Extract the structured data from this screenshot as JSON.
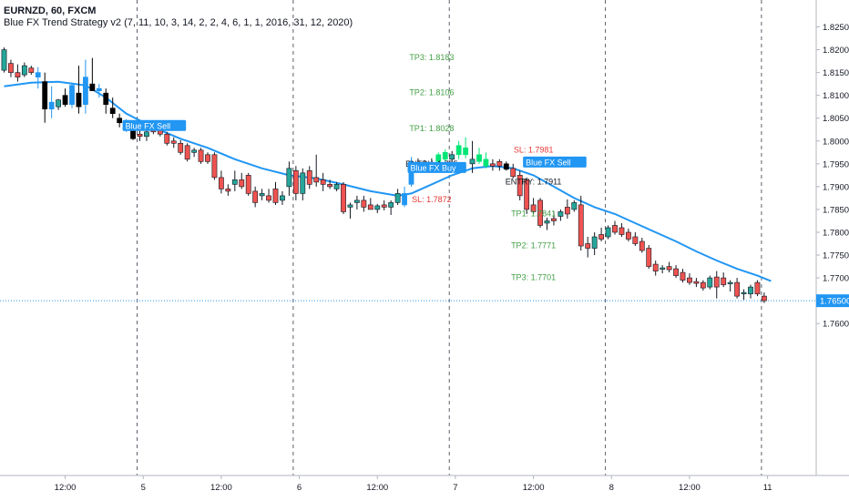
{
  "header": {
    "symbol": "EURNZD, 60, FXCM",
    "strategy": "Blue FX Trend Strategy v2 (7, 11, 10, 3, 14, 2, 2, 4, 6, 1, 1, 2016, 31, 12, 2020)"
  },
  "colors": {
    "up": "#26a69a",
    "down": "#ef5350",
    "ema": "#2196f3",
    "signal_up": "#00e676",
    "signal_down": "#000000",
    "signal_blue": "#2196f3",
    "tp": "#43a047",
    "entry": "#131722",
    "sl": "#e53935",
    "price_tag": "#2196f3"
  },
  "chart_data": {
    "type": "candlestick",
    "y_axis": {
      "range": [
        1.7575,
        1.8285
      ],
      "ticks": [
        "1.82500",
        "1.82000",
        "1.81500",
        "1.81000",
        "1.80500",
        "1.80000",
        "1.79500",
        "1.79000",
        "1.78500",
        "1.78000",
        "1.77500",
        "1.77000",
        "1.76500",
        "1.76000"
      ]
    },
    "x_axis": {
      "ticks": [
        {
          "i": 9,
          "label": "12:00"
        },
        {
          "i": 20.5,
          "label": "5"
        },
        {
          "i": 32,
          "label": "12:00"
        },
        {
          "i": 43.5,
          "label": "6"
        },
        {
          "i": 55,
          "label": "12:00"
        },
        {
          "i": 66.5,
          "label": "7"
        },
        {
          "i": 78,
          "label": "12:00"
        },
        {
          "i": 89.5,
          "label": "8"
        },
        {
          "i": 101,
          "label": "12:00"
        },
        {
          "i": 112.5,
          "label": "11"
        }
      ],
      "session_separators": [
        19.6,
        42.6,
        65.6,
        88.6,
        111.6
      ]
    },
    "last_price": {
      "value": 1.765,
      "label": "1.76500"
    },
    "candles": [
      {
        "o": 1.8155,
        "h": 1.8205,
        "l": 1.815,
        "c": 1.82,
        "s": "up"
      },
      {
        "o": 1.817,
        "h": 1.8178,
        "l": 1.814,
        "c": 1.815,
        "s": "down"
      },
      {
        "o": 1.815,
        "h": 1.8168,
        "l": 1.813,
        "c": 1.814,
        "s": "down"
      },
      {
        "o": 1.8145,
        "h": 1.8172,
        "l": 1.814,
        "c": 1.8165,
        "s": "up"
      },
      {
        "o": 1.816,
        "h": 1.8165,
        "l": 1.8145,
        "c": 1.815,
        "s": "down"
      },
      {
        "o": 1.815,
        "h": 1.8162,
        "l": 1.8115,
        "c": 1.814,
        "s": "blue"
      },
      {
        "o": 1.813,
        "h": 1.815,
        "l": 1.804,
        "c": 1.807,
        "s": "dn"
      },
      {
        "o": 1.807,
        "h": 1.812,
        "l": 1.805,
        "c": 1.8085,
        "s": "blue"
      },
      {
        "o": 1.8075,
        "h": 1.8092,
        "l": 1.8068,
        "c": 1.809,
        "s": "up"
      },
      {
        "o": 1.81,
        "h": 1.8115,
        "l": 1.8075,
        "c": 1.808,
        "s": "dn"
      },
      {
        "o": 1.808,
        "h": 1.8128,
        "l": 1.8072,
        "c": 1.8122,
        "s": "blue"
      },
      {
        "o": 1.8105,
        "h": 1.8165,
        "l": 1.806,
        "c": 1.8075,
        "s": "dn"
      },
      {
        "o": 1.808,
        "h": 1.8178,
        "l": 1.806,
        "c": 1.814,
        "s": "blue"
      },
      {
        "o": 1.8125,
        "h": 1.8182,
        "l": 1.811,
        "c": 1.811,
        "s": "dn"
      },
      {
        "o": 1.811,
        "h": 1.8125,
        "l": 1.8095,
        "c": 1.8115,
        "s": "blue"
      },
      {
        "o": 1.8105,
        "h": 1.8115,
        "l": 1.806,
        "c": 1.808,
        "s": "dn"
      },
      {
        "o": 1.8072,
        "h": 1.8095,
        "l": 1.805,
        "c": 1.806,
        "s": "dn"
      },
      {
        "o": 1.805,
        "h": 1.806,
        "l": 1.803,
        "c": 1.804,
        "s": "dn"
      },
      {
        "o": 1.804,
        "h": 1.8048,
        "l": 1.802,
        "c": 1.803,
        "s": "blue"
      },
      {
        "o": 1.803,
        "h": 1.8035,
        "l": 1.8002,
        "c": 1.8005,
        "s": "dn"
      },
      {
        "o": 1.8015,
        "h": 1.803,
        "l": 1.8,
        "c": 1.801,
        "s": "down"
      },
      {
        "o": 1.801,
        "h": 1.8025,
        "l": 1.8,
        "c": 1.802,
        "s": "up"
      },
      {
        "o": 1.8025,
        "h": 1.8032,
        "l": 1.8015,
        "c": 1.802,
        "s": "down"
      },
      {
        "o": 1.803,
        "h": 1.8035,
        "l": 1.801,
        "c": 1.8015,
        "s": "down"
      },
      {
        "o": 1.8015,
        "h": 1.802,
        "l": 1.799,
        "c": 1.7995,
        "s": "down"
      },
      {
        "o": 1.8,
        "h": 1.8008,
        "l": 1.7985,
        "c": 1.7995,
        "s": "down"
      },
      {
        "o": 1.7995,
        "h": 1.8002,
        "l": 1.797,
        "c": 1.7975,
        "s": "down"
      },
      {
        "o": 1.799,
        "h": 1.7995,
        "l": 1.7955,
        "c": 1.796,
        "s": "down"
      },
      {
        "o": 1.7975,
        "h": 1.7985,
        "l": 1.7965,
        "c": 1.798,
        "s": "up"
      },
      {
        "o": 1.798,
        "h": 1.7985,
        "l": 1.795,
        "c": 1.7955,
        "s": "down"
      },
      {
        "o": 1.797,
        "h": 1.7975,
        "l": 1.795,
        "c": 1.7955,
        "s": "down"
      },
      {
        "o": 1.797,
        "h": 1.7975,
        "l": 1.7915,
        "c": 1.792,
        "s": "down"
      },
      {
        "o": 1.792,
        "h": 1.7935,
        "l": 1.7885,
        "c": 1.7895,
        "s": "down"
      },
      {
        "o": 1.7895,
        "h": 1.7905,
        "l": 1.788,
        "c": 1.789,
        "s": "down"
      },
      {
        "o": 1.7905,
        "h": 1.7935,
        "l": 1.789,
        "c": 1.7915,
        "s": "up"
      },
      {
        "o": 1.7915,
        "h": 1.793,
        "l": 1.7895,
        "c": 1.79,
        "s": "down"
      },
      {
        "o": 1.7925,
        "h": 1.793,
        "l": 1.788,
        "c": 1.7885,
        "s": "down"
      },
      {
        "o": 1.789,
        "h": 1.79,
        "l": 1.7855,
        "c": 1.7865,
        "s": "down"
      },
      {
        "o": 1.788,
        "h": 1.7895,
        "l": 1.787,
        "c": 1.7885,
        "s": "up"
      },
      {
        "o": 1.788,
        "h": 1.7895,
        "l": 1.7865,
        "c": 1.787,
        "s": "down"
      },
      {
        "o": 1.7895,
        "h": 1.791,
        "l": 1.786,
        "c": 1.7865,
        "s": "down"
      },
      {
        "o": 1.787,
        "h": 1.789,
        "l": 1.786,
        "c": 1.788,
        "s": "up"
      },
      {
        "o": 1.79,
        "h": 1.7955,
        "l": 1.788,
        "c": 1.794,
        "s": "up"
      },
      {
        "o": 1.7935,
        "h": 1.7945,
        "l": 1.787,
        "c": 1.7885,
        "s": "down"
      },
      {
        "o": 1.7885,
        "h": 1.794,
        "l": 1.787,
        "c": 1.793,
        "s": "up"
      },
      {
        "o": 1.7935,
        "h": 1.7945,
        "l": 1.7895,
        "c": 1.7905,
        "s": "down"
      },
      {
        "o": 1.791,
        "h": 1.797,
        "l": 1.79,
        "c": 1.792,
        "s": "down"
      },
      {
        "o": 1.7915,
        "h": 1.793,
        "l": 1.789,
        "c": 1.7905,
        "s": "down"
      },
      {
        "o": 1.7905,
        "h": 1.7915,
        "l": 1.7895,
        "c": 1.79,
        "s": "down"
      },
      {
        "o": 1.7895,
        "h": 1.791,
        "l": 1.789,
        "c": 1.7905,
        "s": "up"
      },
      {
        "o": 1.7905,
        "h": 1.791,
        "l": 1.784,
        "c": 1.7845,
        "s": "down"
      },
      {
        "o": 1.7855,
        "h": 1.7865,
        "l": 1.783,
        "c": 1.786,
        "s": "up"
      },
      {
        "o": 1.7865,
        "h": 1.788,
        "l": 1.785,
        "c": 1.787,
        "s": "up"
      },
      {
        "o": 1.787,
        "h": 1.788,
        "l": 1.7845,
        "c": 1.7855,
        "s": "down"
      },
      {
        "o": 1.786,
        "h": 1.7875,
        "l": 1.785,
        "c": 1.785,
        "s": "down"
      },
      {
        "o": 1.785,
        "h": 1.7862,
        "l": 1.7842,
        "c": 1.7858,
        "s": "up"
      },
      {
        "o": 1.786,
        "h": 1.787,
        "l": 1.7848,
        "c": 1.7855,
        "s": "down"
      },
      {
        "o": 1.7855,
        "h": 1.787,
        "l": 1.7838,
        "c": 1.7865,
        "s": "up"
      },
      {
        "o": 1.7865,
        "h": 1.7895,
        "l": 1.786,
        "c": 1.7885,
        "s": "up"
      },
      {
        "o": 1.786,
        "h": 1.79,
        "l": 1.7855,
        "c": 1.7885,
        "s": "blue"
      },
      {
        "o": 1.7905,
        "h": 1.7965,
        "l": 1.79,
        "c": 1.7955,
        "s": "blue"
      },
      {
        "o": 1.795,
        "h": 1.7962,
        "l": 1.794,
        "c": 1.7945,
        "s": "up"
      },
      {
        "o": 1.7945,
        "h": 1.7958,
        "l": 1.7938,
        "c": 1.795,
        "s": "up"
      },
      {
        "o": 1.795,
        "h": 1.7962,
        "l": 1.7942,
        "c": 1.7948,
        "s": "up"
      },
      {
        "o": 1.7955,
        "h": 1.7975,
        "l": 1.795,
        "c": 1.797,
        "s": "sig"
      },
      {
        "o": 1.796,
        "h": 1.7982,
        "l": 1.7955,
        "c": 1.7975,
        "s": "sig"
      },
      {
        "o": 1.796,
        "h": 1.7978,
        "l": 1.7955,
        "c": 1.797,
        "s": "up"
      },
      {
        "o": 1.797,
        "h": 1.8,
        "l": 1.796,
        "c": 1.799,
        "s": "sig"
      },
      {
        "o": 1.7985,
        "h": 1.8008,
        "l": 1.7962,
        "c": 1.797,
        "s": "sig"
      },
      {
        "o": 1.796,
        "h": 1.8,
        "l": 1.793,
        "c": 1.795,
        "s": "up"
      },
      {
        "o": 1.797,
        "h": 1.7985,
        "l": 1.795,
        "c": 1.7955,
        "s": "sig"
      },
      {
        "o": 1.796,
        "h": 1.7975,
        "l": 1.794,
        "c": 1.7945,
        "s": "sig"
      },
      {
        "o": 1.795,
        "h": 1.796,
        "l": 1.7935,
        "c": 1.7945,
        "s": "down"
      },
      {
        "o": 1.7955,
        "h": 1.796,
        "l": 1.7935,
        "c": 1.7945,
        "s": "down"
      },
      {
        "o": 1.795,
        "h": 1.7955,
        "l": 1.7935,
        "c": 1.7938,
        "s": "dn"
      },
      {
        "o": 1.794,
        "h": 1.795,
        "l": 1.7918,
        "c": 1.7922,
        "s": "down"
      },
      {
        "o": 1.7925,
        "h": 1.7935,
        "l": 1.787,
        "c": 1.788,
        "s": "down"
      },
      {
        "o": 1.7915,
        "h": 1.792,
        "l": 1.784,
        "c": 1.785,
        "s": "down"
      },
      {
        "o": 1.786,
        "h": 1.7875,
        "l": 1.784,
        "c": 1.7845,
        "s": "down"
      },
      {
        "o": 1.787,
        "h": 1.7875,
        "l": 1.781,
        "c": 1.7815,
        "s": "down"
      },
      {
        "o": 1.782,
        "h": 1.7832,
        "l": 1.7805,
        "c": 1.7825,
        "s": "up"
      },
      {
        "o": 1.783,
        "h": 1.7845,
        "l": 1.7815,
        "c": 1.7825,
        "s": "down"
      },
      {
        "o": 1.7835,
        "h": 1.785,
        "l": 1.7825,
        "c": 1.7845,
        "s": "up"
      },
      {
        "o": 1.7855,
        "h": 1.7872,
        "l": 1.783,
        "c": 1.784,
        "s": "down"
      },
      {
        "o": 1.785,
        "h": 1.787,
        "l": 1.7845,
        "c": 1.7865,
        "s": "up"
      },
      {
        "o": 1.786,
        "h": 1.788,
        "l": 1.776,
        "c": 1.777,
        "s": "down"
      },
      {
        "o": 1.7775,
        "h": 1.779,
        "l": 1.7745,
        "c": 1.7765,
        "s": "down"
      },
      {
        "o": 1.7765,
        "h": 1.78,
        "l": 1.775,
        "c": 1.779,
        "s": "up"
      },
      {
        "o": 1.7795,
        "h": 1.781,
        "l": 1.778,
        "c": 1.7785,
        "s": "down"
      },
      {
        "o": 1.779,
        "h": 1.7815,
        "l": 1.7785,
        "c": 1.781,
        "s": "up"
      },
      {
        "o": 1.7815,
        "h": 1.7825,
        "l": 1.7795,
        "c": 1.78,
        "s": "down"
      },
      {
        "o": 1.781,
        "h": 1.782,
        "l": 1.779,
        "c": 1.7795,
        "s": "down"
      },
      {
        "o": 1.78,
        "h": 1.7808,
        "l": 1.778,
        "c": 1.7785,
        "s": "down"
      },
      {
        "o": 1.779,
        "h": 1.78,
        "l": 1.777,
        "c": 1.7775,
        "s": "down"
      },
      {
        "o": 1.778,
        "h": 1.7788,
        "l": 1.7755,
        "c": 1.776,
        "s": "down"
      },
      {
        "o": 1.7765,
        "h": 1.7772,
        "l": 1.772,
        "c": 1.7725,
        "s": "down"
      },
      {
        "o": 1.773,
        "h": 1.7738,
        "l": 1.7705,
        "c": 1.7715,
        "s": "down"
      },
      {
        "o": 1.772,
        "h": 1.7728,
        "l": 1.771,
        "c": 1.7722,
        "s": "up"
      },
      {
        "o": 1.7725,
        "h": 1.7735,
        "l": 1.7712,
        "c": 1.7718,
        "s": "down"
      },
      {
        "o": 1.772,
        "h": 1.7728,
        "l": 1.77,
        "c": 1.7705,
        "s": "down"
      },
      {
        "o": 1.7712,
        "h": 1.772,
        "l": 1.769,
        "c": 1.7695,
        "s": "down"
      },
      {
        "o": 1.77,
        "h": 1.771,
        "l": 1.7685,
        "c": 1.769,
        "s": "down"
      },
      {
        "o": 1.7692,
        "h": 1.77,
        "l": 1.768,
        "c": 1.7688,
        "s": "down"
      },
      {
        "o": 1.769,
        "h": 1.7695,
        "l": 1.7672,
        "c": 1.7678,
        "s": "down"
      },
      {
        "o": 1.768,
        "h": 1.7705,
        "l": 1.7675,
        "c": 1.77,
        "s": "up"
      },
      {
        "o": 1.7702,
        "h": 1.7715,
        "l": 1.7655,
        "c": 1.768,
        "s": "down"
      },
      {
        "o": 1.77,
        "h": 1.7712,
        "l": 1.768,
        "c": 1.7685,
        "s": "down"
      },
      {
        "o": 1.7688,
        "h": 1.7695,
        "l": 1.767,
        "c": 1.769,
        "s": "up"
      },
      {
        "o": 1.769,
        "h": 1.77,
        "l": 1.7655,
        "c": 1.766,
        "s": "down"
      },
      {
        "o": 1.7668,
        "h": 1.7675,
        "l": 1.7652,
        "c": 1.7665,
        "s": "up"
      },
      {
        "o": 1.7665,
        "h": 1.7685,
        "l": 1.7655,
        "c": 1.768,
        "s": "up"
      },
      {
        "o": 1.769,
        "h": 1.7695,
        "l": 1.766,
        "c": 1.7665,
        "s": "down"
      },
      {
        "o": 1.766,
        "h": 1.7668,
        "l": 1.7645,
        "c": 1.765,
        "s": "down"
      }
    ],
    "ema": [
      {
        "i": 0,
        "v": 1.812
      },
      {
        "i": 4,
        "v": 1.8128
      },
      {
        "i": 8,
        "v": 1.813
      },
      {
        "i": 12,
        "v": 1.8122
      },
      {
        "i": 15,
        "v": 1.8095
      },
      {
        "i": 18,
        "v": 1.806
      },
      {
        "i": 22,
        "v": 1.803
      },
      {
        "i": 26,
        "v": 1.8005
      },
      {
        "i": 30,
        "v": 1.7985
      },
      {
        "i": 34,
        "v": 1.796
      },
      {
        "i": 38,
        "v": 1.794
      },
      {
        "i": 42,
        "v": 1.7925
      },
      {
        "i": 46,
        "v": 1.7918
      },
      {
        "i": 50,
        "v": 1.7905
      },
      {
        "i": 54,
        "v": 1.789
      },
      {
        "i": 58,
        "v": 1.788
      },
      {
        "i": 60,
        "v": 1.7885
      },
      {
        "i": 63,
        "v": 1.7905
      },
      {
        "i": 66,
        "v": 1.7925
      },
      {
        "i": 69,
        "v": 1.794
      },
      {
        "i": 72,
        "v": 1.7945
      },
      {
        "i": 75,
        "v": 1.794
      },
      {
        "i": 78,
        "v": 1.7925
      },
      {
        "i": 81,
        "v": 1.79
      },
      {
        "i": 84,
        "v": 1.7875
      },
      {
        "i": 87,
        "v": 1.7855
      },
      {
        "i": 90,
        "v": 1.784
      },
      {
        "i": 93,
        "v": 1.782
      },
      {
        "i": 96,
        "v": 1.78
      },
      {
        "i": 99,
        "v": 1.778
      },
      {
        "i": 102,
        "v": 1.7758
      },
      {
        "i": 105,
        "v": 1.7738
      },
      {
        "i": 108,
        "v": 1.772
      },
      {
        "i": 111,
        "v": 1.7705
      },
      {
        "i": 113,
        "v": 1.7693
      }
    ],
    "signals": [
      {
        "i": 18,
        "price": 1.8032,
        "label": "Blue FX Sell",
        "kind": "sell"
      },
      {
        "i": 60,
        "price": 1.794,
        "label": "Blue FX Buy",
        "kind": "buy"
      },
      {
        "i": 77,
        "price": 1.7952,
        "label": "Blue FX Sell",
        "kind": "sell"
      }
    ],
    "annotations": [
      {
        "i": 63,
        "price": 1.8183,
        "label": "TP3: 1.8183",
        "kind": "tp"
      },
      {
        "i": 63,
        "price": 1.8106,
        "label": "TP2: 1.8106",
        "kind": "tp"
      },
      {
        "i": 63,
        "price": 1.8028,
        "label": "TP1: 1.8028",
        "kind": "tp"
      },
      {
        "i": 63,
        "price": 1.795,
        "label": "ENTRY: 1.795",
        "kind": "entry"
      },
      {
        "i": 63,
        "price": 1.7872,
        "label": "SL: 1.7872",
        "kind": "sl"
      },
      {
        "i": 78,
        "price": 1.7981,
        "label": "SL: 1.7981",
        "kind": "sl"
      },
      {
        "i": 78,
        "price": 1.7911,
        "label": "ENTRY: 1.7911",
        "kind": "entry"
      },
      {
        "i": 78,
        "price": 1.7841,
        "label": "TP1: 1.7841",
        "kind": "tp"
      },
      {
        "i": 78,
        "price": 1.7771,
        "label": "TP2: 1.7771",
        "kind": "tp"
      },
      {
        "i": 78,
        "price": 1.7701,
        "label": "TP3: 1.7701",
        "kind": "tp"
      }
    ]
  }
}
